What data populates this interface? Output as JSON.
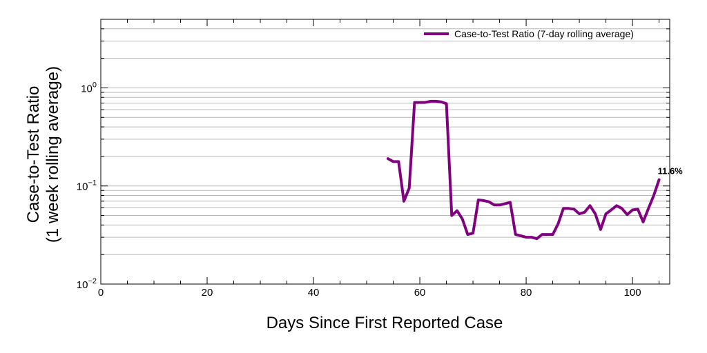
{
  "chart_data": {
    "type": "line",
    "title": "",
    "xlabel": "Days Since First Reported Case",
    "ylabel_line1": "Case-to-Test Ratio",
    "ylabel_line2": "(1 week rolling average)",
    "xlim": [
      0,
      107
    ],
    "ylim": [
      0.01,
      5
    ],
    "yscale": "log",
    "grid": "horizontal",
    "legend_position": "top-right",
    "x_ticks": [
      0,
      20,
      40,
      60,
      80,
      100
    ],
    "x_tick_labels": [
      "0",
      "20",
      "40",
      "60",
      "80",
      "100"
    ],
    "y_ticks": [
      {
        "value": 0.01,
        "base": "10",
        "exp": "−2"
      },
      {
        "value": 0.1,
        "base": "10",
        "exp": "−1"
      },
      {
        "value": 1,
        "base": "10",
        "exp": "0"
      }
    ],
    "series": [
      {
        "name": "Case-to-Test Ratio (7-day rolling average)",
        "color": "#800080",
        "x": [
          54,
          55,
          56,
          57,
          58,
          59,
          60,
          61,
          62,
          63,
          64,
          65,
          66,
          67,
          68,
          69,
          70,
          71,
          72,
          73,
          74,
          75,
          76,
          77,
          78,
          79,
          80,
          81,
          82,
          83,
          84,
          85,
          86,
          87,
          88,
          89,
          90,
          91,
          92,
          93,
          94,
          95,
          96,
          97,
          98,
          99,
          100,
          101,
          102,
          103,
          104,
          105
        ],
        "y": [
          0.19,
          0.177,
          0.177,
          0.07,
          0.095,
          0.71,
          0.71,
          0.71,
          0.73,
          0.73,
          0.72,
          0.69,
          0.05,
          0.056,
          0.046,
          0.032,
          0.033,
          0.072,
          0.071,
          0.069,
          0.064,
          0.064,
          0.066,
          0.068,
          0.032,
          0.031,
          0.03,
          0.03,
          0.029,
          0.032,
          0.032,
          0.032,
          0.041,
          0.059,
          0.059,
          0.058,
          0.052,
          0.054,
          0.063,
          0.052,
          0.036,
          0.052,
          0.057,
          0.063,
          0.059,
          0.051,
          0.057,
          0.058,
          0.043,
          0.059,
          0.08,
          0.116
        ]
      }
    ],
    "annotations": [
      {
        "text": "11.6%",
        "x": 105,
        "y": 0.116
      }
    ]
  }
}
